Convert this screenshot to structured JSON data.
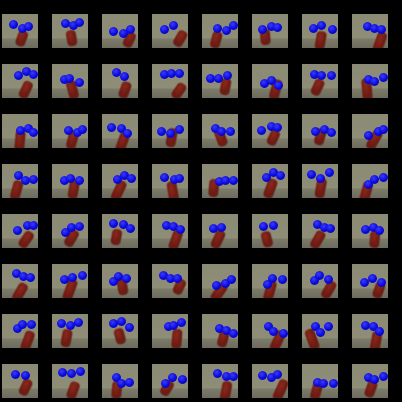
{
  "grid": {
    "rows": 8,
    "cols": 8
  },
  "colors": {
    "background": "#000000",
    "table": "#8e8d76",
    "ball": "#0a0ad8",
    "arm": "#6e1a12"
  },
  "tiles": [
    {
      "balls": 3,
      "arm_angle": 20
    },
    {
      "balls": 3,
      "arm_angle": -10
    },
    {
      "balls": 3,
      "arm_angle": 25
    },
    {
      "balls": 2,
      "arm_angle": 30
    },
    {
      "balls": 3,
      "arm_angle": 15
    },
    {
      "balls": 3,
      "arm_angle": -5
    },
    {
      "balls": 3,
      "arm_angle": 10
    },
    {
      "balls": 3,
      "arm_angle": 20
    },
    {
      "balls": 3,
      "arm_angle": 25
    },
    {
      "balls": 3,
      "arm_angle": -15
    },
    {
      "balls": 2,
      "arm_angle": 20
    },
    {
      "balls": 3,
      "arm_angle": 35
    },
    {
      "balls": 3,
      "arm_angle": 10
    },
    {
      "balls": 3,
      "arm_angle": 15
    },
    {
      "balls": 3,
      "arm_angle": 25
    },
    {
      "balls": 3,
      "arm_angle": -5
    },
    {
      "balls": 3,
      "arm_angle": 5
    },
    {
      "balls": 3,
      "arm_angle": 15
    },
    {
      "balls": 3,
      "arm_angle": 20
    },
    {
      "balls": 3,
      "arm_angle": 10
    },
    {
      "balls": 3,
      "arm_angle": -20
    },
    {
      "balls": 3,
      "arm_angle": 25
    },
    {
      "balls": 3,
      "arm_angle": 15
    },
    {
      "balls": 3,
      "arm_angle": 30
    },
    {
      "balls": 3,
      "arm_angle": 15
    },
    {
      "balls": 3,
      "arm_angle": 10
    },
    {
      "balls": 3,
      "arm_angle": 25
    },
    {
      "balls": 3,
      "arm_angle": -10
    },
    {
      "balls": 3,
      "arm_angle": 5
    },
    {
      "balls": 3,
      "arm_angle": 20
    },
    {
      "balls": 3,
      "arm_angle": 10
    },
    {
      "balls": 3,
      "arm_angle": 15
    },
    {
      "balls": 3,
      "arm_angle": 35
    },
    {
      "balls": 3,
      "arm_angle": 30
    },
    {
      "balls": 3,
      "arm_angle": 10
    },
    {
      "balls": 3,
      "arm_angle": 20
    },
    {
      "balls": 2,
      "arm_angle": 25
    },
    {
      "balls": 2,
      "arm_angle": -15
    },
    {
      "balls": 3,
      "arm_angle": 30
    },
    {
      "balls": 3,
      "arm_angle": 5
    },
    {
      "balls": 3,
      "arm_angle": 30
    },
    {
      "balls": 3,
      "arm_angle": 20
    },
    {
      "balls": 3,
      "arm_angle": -10
    },
    {
      "balls": 3,
      "arm_angle": 25
    },
    {
      "balls": 3,
      "arm_angle": 35
    },
    {
      "balls": 3,
      "arm_angle": 15
    },
    {
      "balls": 3,
      "arm_angle": 30
    },
    {
      "balls": 3,
      "arm_angle": 20
    },
    {
      "balls": 3,
      "arm_angle": 20
    },
    {
      "balls": 3,
      "arm_angle": 10
    },
    {
      "balls": 3,
      "arm_angle": -15
    },
    {
      "balls": 3,
      "arm_angle": 5
    },
    {
      "balls": 3,
      "arm_angle": 15
    },
    {
      "balls": 3,
      "arm_angle": 25
    },
    {
      "balls": 3,
      "arm_angle": -20
    },
    {
      "balls": 3,
      "arm_angle": 10
    },
    {
      "balls": 2,
      "arm_angle": 25
    },
    {
      "balls": 3,
      "arm_angle": 20
    },
    {
      "balls": 3,
      "arm_angle": 5
    },
    {
      "balls": 3,
      "arm_angle": 30
    },
    {
      "balls": 3,
      "arm_angle": 10
    },
    {
      "balls": 3,
      "arm_angle": 25
    },
    {
      "balls": 3,
      "arm_angle": 15
    },
    {
      "balls": 3,
      "arm_angle": 20
    }
  ]
}
